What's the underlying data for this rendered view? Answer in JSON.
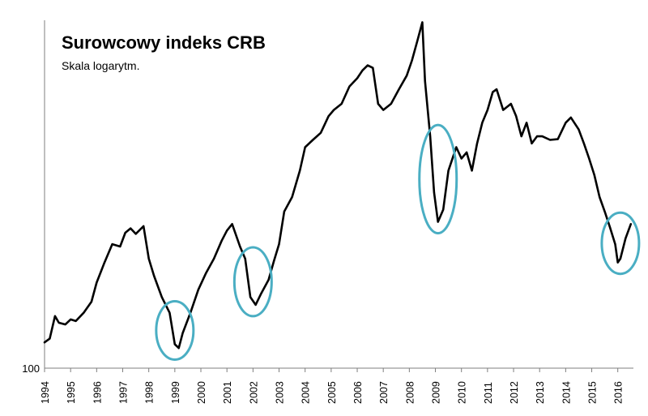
{
  "chart_data": {
    "type": "line",
    "title": "Surowcowy indeks CRB",
    "subtitle": "Skala logarytm.",
    "xlabel": "",
    "ylabel": "",
    "y_scale": "log",
    "y_tick_labels": [
      "100"
    ],
    "ylim": [
      100,
      520
    ],
    "xlim": [
      1994.0,
      2016.6
    ],
    "x_tick_labels": [
      "1994",
      "1995",
      "1996",
      "1997",
      "1998",
      "1999",
      "2000",
      "2001",
      "2002",
      "2003",
      "2004",
      "2005",
      "2006",
      "2007",
      "2008",
      "2009",
      "2010",
      "2011",
      "2012",
      "2013",
      "2014",
      "2015",
      "2016"
    ],
    "series": [
      {
        "name": "CRB",
        "color": "#000000",
        "x": [
          1994.0,
          1994.2,
          1994.4,
          1994.55,
          1994.8,
          1995.0,
          1995.2,
          1995.5,
          1995.8,
          1996.0,
          1996.3,
          1996.6,
          1996.9,
          1997.1,
          1997.3,
          1997.5,
          1997.8,
          1998.0,
          1998.2,
          1998.5,
          1998.8,
          1999.0,
          1999.15,
          1999.3,
          1999.6,
          1999.9,
          2000.2,
          2000.5,
          2000.8,
          2001.0,
          2001.2,
          2001.5,
          2001.7,
          2001.9,
          2002.1,
          2002.3,
          2002.6,
          2002.8,
          2003.0,
          2003.2,
          2003.5,
          2003.8,
          2004.0,
          2004.3,
          2004.6,
          2004.9,
          2005.1,
          2005.4,
          2005.7,
          2006.0,
          2006.2,
          2006.4,
          2006.6,
          2006.8,
          2007.0,
          2007.3,
          2007.6,
          2007.9,
          2008.1,
          2008.3,
          2008.5,
          2008.6,
          2008.8,
          2008.95,
          2009.1,
          2009.3,
          2009.5,
          2009.8,
          2010.0,
          2010.2,
          2010.4,
          2010.6,
          2010.8,
          2011.0,
          2011.2,
          2011.35,
          2011.6,
          2011.9,
          2012.1,
          2012.3,
          2012.5,
          2012.7,
          2012.9,
          2013.1,
          2013.4,
          2013.7,
          2014.0,
          2014.2,
          2014.5,
          2014.7,
          2014.9,
          2015.1,
          2015.3,
          2015.5,
          2015.7,
          2015.9,
          2016.0,
          2016.1,
          2016.3,
          2016.5
        ],
        "values": [
          113,
          115,
          128,
          124,
          123,
          126,
          125,
          130,
          137,
          150,
          165,
          180,
          178,
          190,
          194,
          189,
          196,
          168,
          155,
          140,
          130,
          112,
          110,
          118,
          130,
          145,
          157,
          168,
          183,
          192,
          198,
          178,
          168,
          140,
          135,
          142,
          152,
          166,
          180,
          210,
          225,
          255,
          285,
          295,
          305,
          330,
          340,
          350,
          380,
          395,
          410,
          420,
          415,
          350,
          340,
          350,
          375,
          400,
          430,
          470,
          515,
          390,
          300,
          230,
          200,
          212,
          255,
          285,
          270,
          278,
          255,
          290,
          320,
          340,
          370,
          375,
          340,
          350,
          330,
          300,
          320,
          290,
          300,
          300,
          295,
          296,
          320,
          328,
          310,
          290,
          270,
          250,
          225,
          210,
          195,
          180,
          165,
          168,
          185,
          198
        ]
      }
    ],
    "annotations": [
      {
        "type": "ellipse",
        "x_center": 1999.0,
        "color": "#4aaec3"
      },
      {
        "type": "ellipse",
        "x_center": 2002.0,
        "color": "#4aaec3"
      },
      {
        "type": "ellipse",
        "x_center": 2009.1,
        "color": "#4aaec3"
      },
      {
        "type": "ellipse",
        "x_center": 2016.1,
        "color": "#4aaec3"
      }
    ]
  }
}
